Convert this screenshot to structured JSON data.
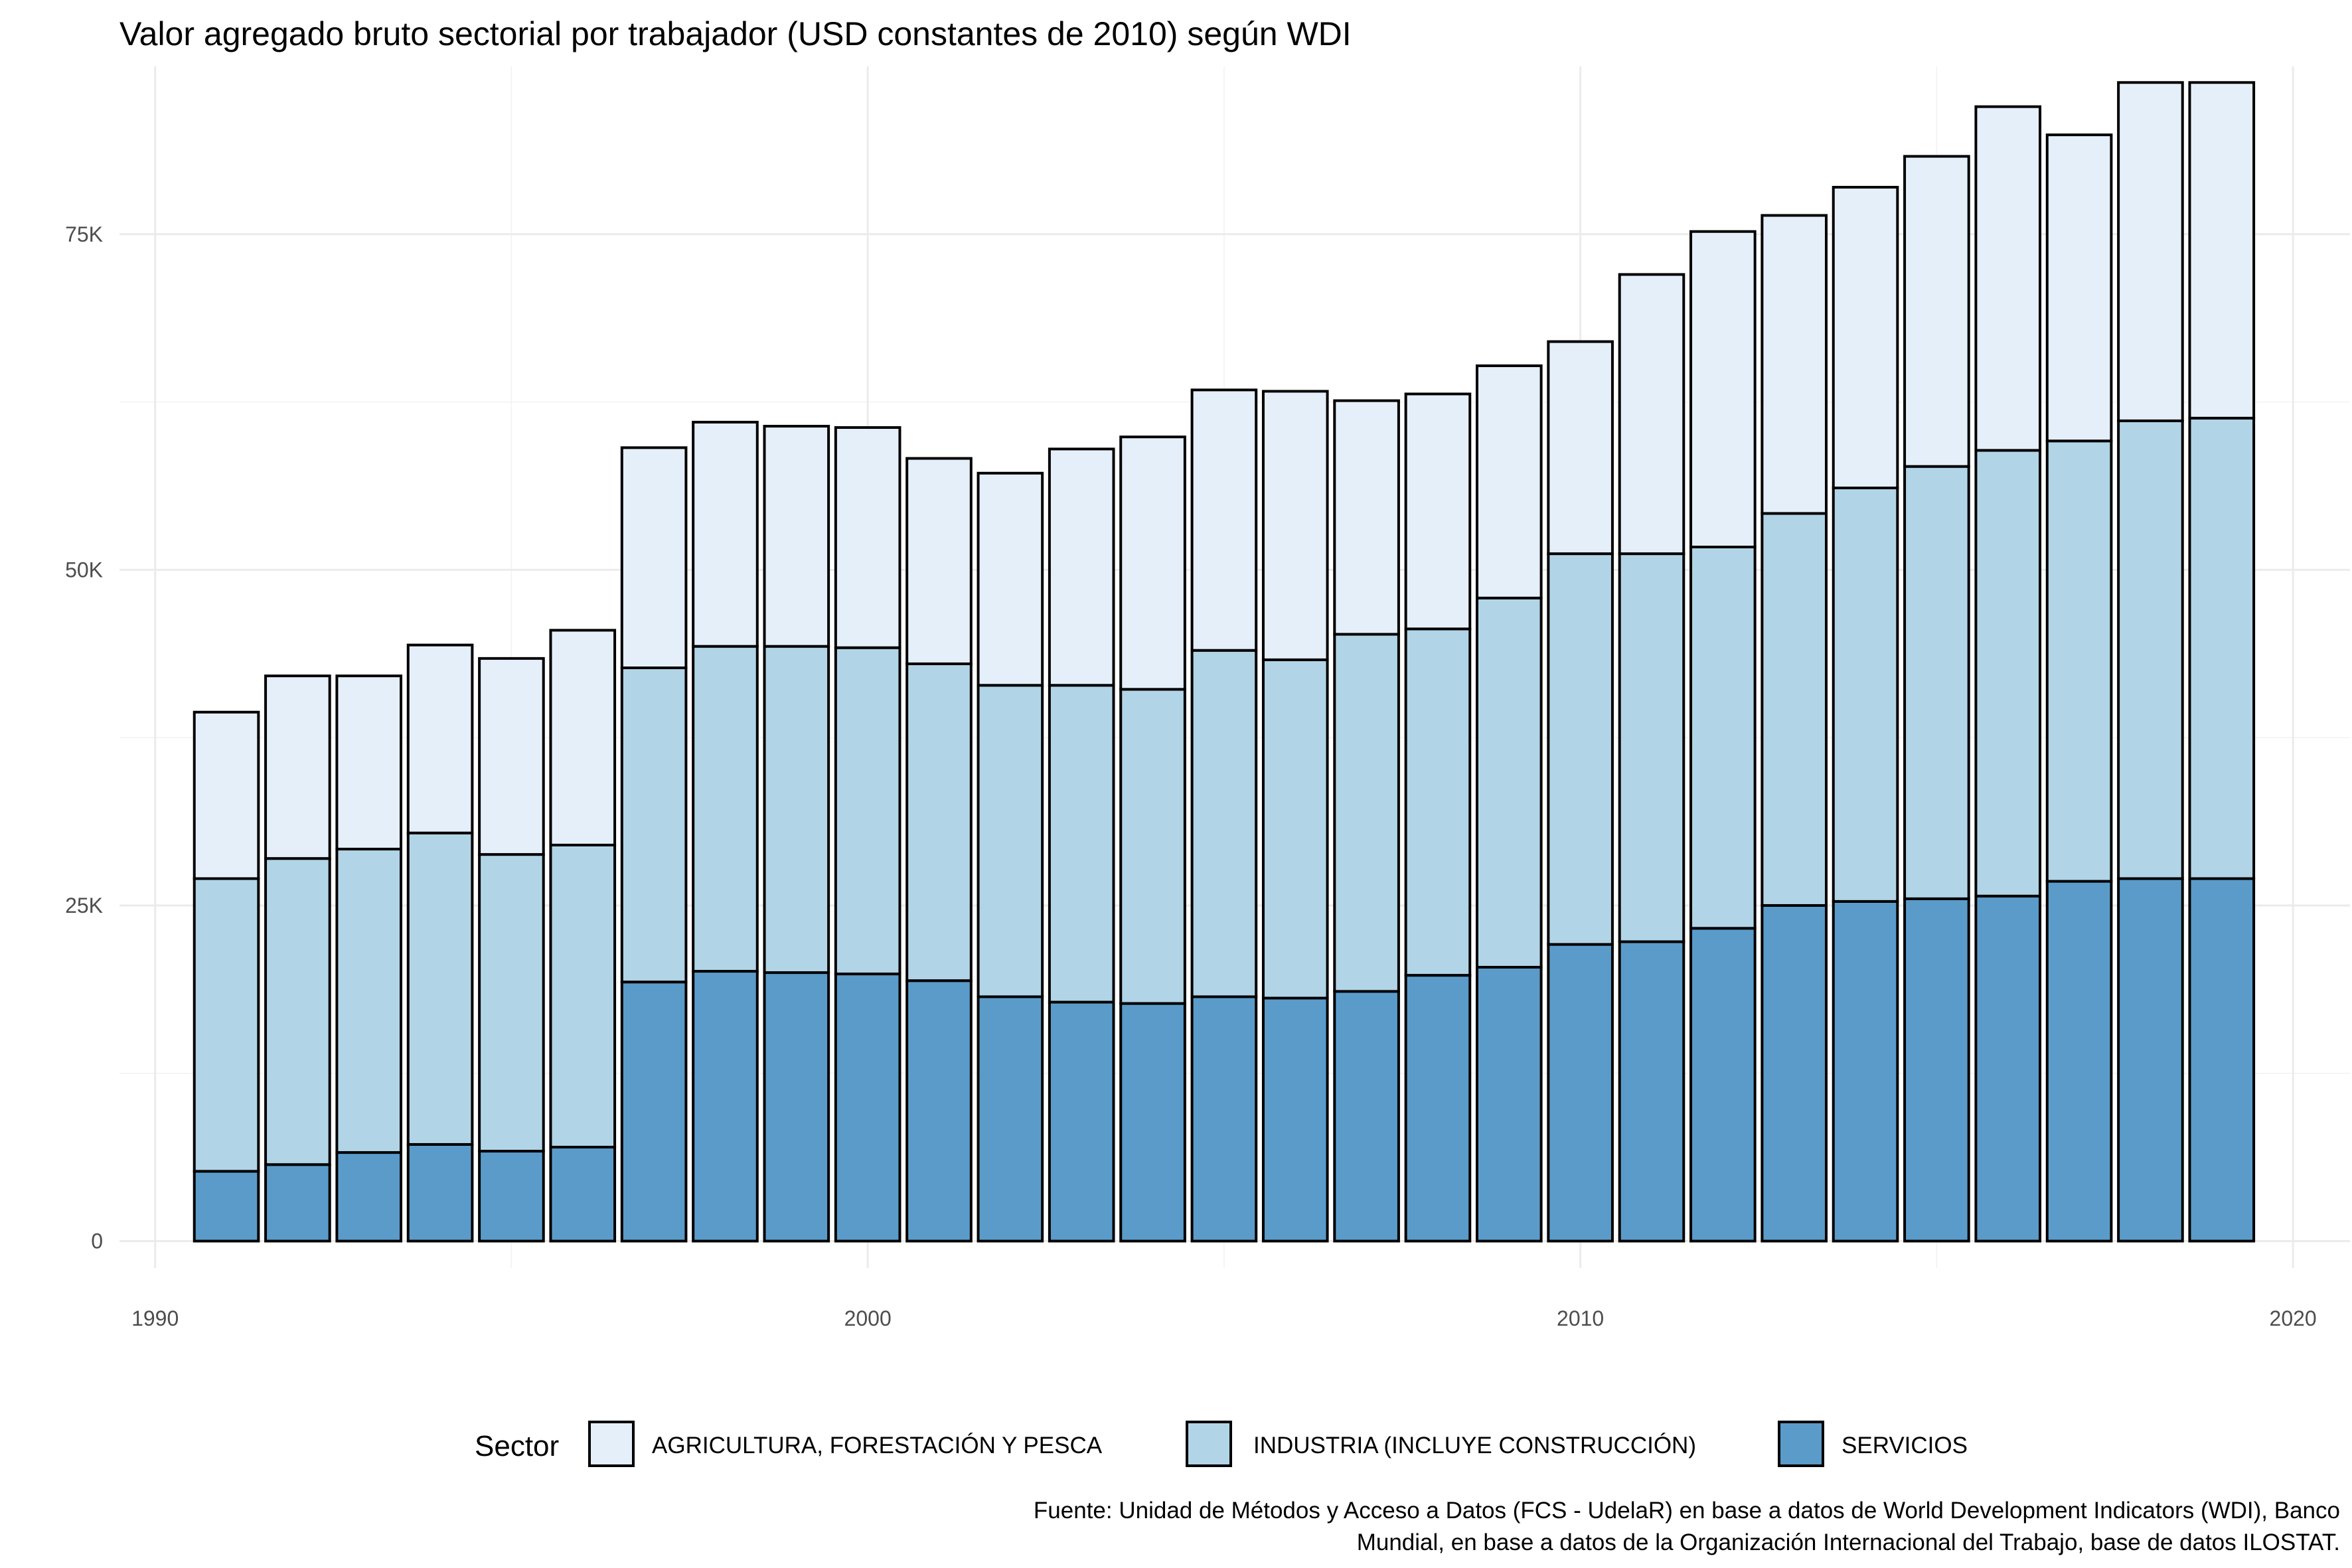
{
  "chart_data": {
    "type": "bar",
    "stacked": true,
    "title": "Valor agregado bruto sectorial por trabajador (USD constantes de 2010) según WDI",
    "xlabel": "",
    "ylabel": "",
    "x": [
      1991,
      1992,
      1993,
      1994,
      1995,
      1996,
      1997,
      1998,
      1999,
      2000,
      2001,
      2002,
      2003,
      2004,
      2005,
      2006,
      2007,
      2008,
      2009,
      2010,
      2011,
      2012,
      2013,
      2014,
      2015,
      2016,
      2017,
      2018,
      2019
    ],
    "xlim": [
      1989.5,
      2020.8
    ],
    "ylim": [
      -2000,
      87500
    ],
    "x_ticks": [
      1990,
      2000,
      2010,
      2020
    ],
    "x_tick_labels": [
      "1990",
      "2000",
      "2010",
      "2020"
    ],
    "y_ticks": [
      0,
      25000,
      50000,
      75000
    ],
    "y_tick_labels": [
      "0",
      "25K",
      "50K",
      "75K"
    ],
    "grid": true,
    "legend": {
      "title": "Sector",
      "position": "bottom"
    },
    "series": [
      {
        "name": "SERVICIOS",
        "color": "#5b9bc9",
        "values": [
          5200,
          5700,
          6600,
          7200,
          6700,
          7000,
          19300,
          20100,
          20000,
          19900,
          19400,
          18200,
          17800,
          17700,
          18200,
          18100,
          18600,
          19800,
          20400,
          22100,
          22300,
          23300,
          25000,
          25300,
          25500,
          25700,
          26800,
          27000,
          27000
        ]
      },
      {
        "name": "INDUSTRIA (INCLUYE CONSTRUCCIÓN)",
        "color": "#b2d4e7",
        "values": [
          21800,
          22800,
          22600,
          23200,
          22100,
          22500,
          23400,
          24200,
          24300,
          24300,
          23600,
          23200,
          23600,
          23400,
          25800,
          25200,
          26600,
          25800,
          27500,
          29100,
          28900,
          28400,
          29200,
          30800,
          32200,
          33200,
          32800,
          34100,
          34300
        ]
      },
      {
        "name": "AGRICULTURA, FORESTACIÓN Y PESCA",
        "color": "#e5eff9",
        "values": [
          12400,
          13600,
          12900,
          14000,
          14600,
          16000,
          16400,
          16700,
          16400,
          16400,
          15300,
          15800,
          17600,
          18800,
          19400,
          20000,
          17400,
          17500,
          17300,
          15800,
          20800,
          23500,
          22200,
          22400,
          23100,
          25600,
          22800,
          25200,
          25000
        ]
      }
    ],
    "caption": [
      "Fuente: Unidad de Métodos y Acceso a Datos (FCS - UdelaR) en base a datos de World Development Indicators (WDI), Banco",
      "Mundial, en base a datos de la Organización Internacional del Trabajo, base de datos ILOSTAT."
    ]
  }
}
